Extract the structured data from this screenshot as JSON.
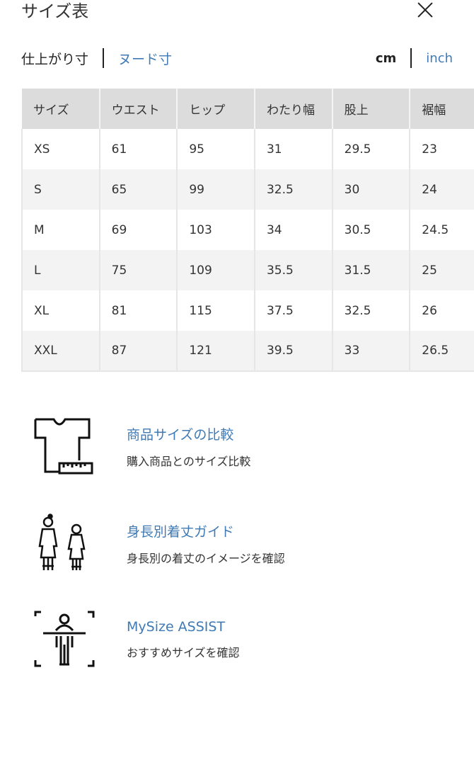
{
  "header": {
    "title": "サイズ表",
    "close_icon": "close-icon"
  },
  "measure_toggle": {
    "active": "仕上がり寸",
    "other": "ヌード寸"
  },
  "unit_toggle": {
    "active": "cm",
    "other": "inch"
  },
  "colors": {
    "accent": "#3f7ab5",
    "header_bg": "#dcdcdc",
    "stripe_bg": "#f3f3f3"
  },
  "table": {
    "headers": [
      "サイズ",
      "ウエスト",
      "ヒップ",
      "わたり幅",
      "股上",
      "裾幅"
    ],
    "rows": [
      [
        "XS",
        "61",
        "95",
        "31",
        "29.5",
        "23"
      ],
      [
        "S",
        "65",
        "99",
        "32.5",
        "30",
        "24"
      ],
      [
        "M",
        "69",
        "103",
        "34",
        "30.5",
        "24.5"
      ],
      [
        "L",
        "75",
        "109",
        "35.5",
        "31.5",
        "25"
      ],
      [
        "XL",
        "81",
        "115",
        "37.5",
        "32.5",
        "26"
      ],
      [
        "XXL",
        "87",
        "121",
        "39.5",
        "33",
        "26.5"
      ]
    ]
  },
  "links": [
    {
      "icon": "tshirt-ruler-icon",
      "title": "商品サイズの比較",
      "subtitle": "購入商品とのサイズ比較"
    },
    {
      "icon": "people-height-icon",
      "title": "身長別着丈ガイド",
      "subtitle": "身長別の着丈のイメージを確認"
    },
    {
      "icon": "body-scan-icon",
      "title": "MySize ASSIST",
      "subtitle": "おすすめサイズを確認"
    }
  ]
}
